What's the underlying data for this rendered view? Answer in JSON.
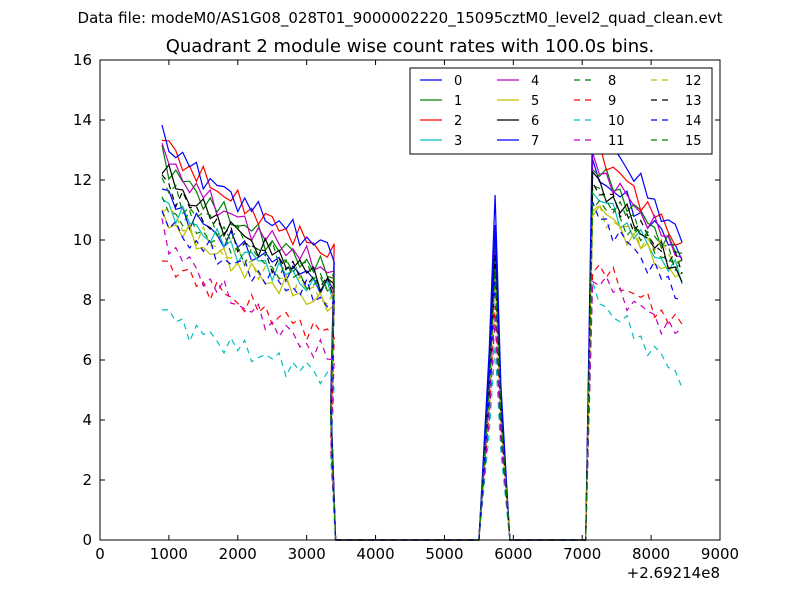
{
  "figure": {
    "suptitle": "Data file: modeM0/AS1G08_028T01_9000002220_15095cztM0_level2_quad_clean.evt"
  },
  "chart_data": {
    "type": "line",
    "title": "Quadrant 2 module wise count rates with 100.0s bins.",
    "xlabel": "",
    "ylabel": "",
    "x_offset_label": "+2.69214e8",
    "xlim": [
      0,
      9000
    ],
    "ylim": [
      0,
      16
    ],
    "xticks": [
      0,
      1000,
      2000,
      3000,
      4000,
      5000,
      6000,
      7000,
      8000,
      9000
    ],
    "yticks": [
      0,
      2,
      4,
      6,
      8,
      10,
      12,
      14,
      16
    ],
    "grid": false,
    "legend": {
      "placement": "top-right",
      "columns": 4
    },
    "segments": [
      {
        "x_start": 900,
        "x_step": 100,
        "points": 26,
        "drop_to_zero_at": 3450
      },
      {
        "peak_x": 5735,
        "flat_zero_until": 5500,
        "returns_zero_at": 5950
      },
      {
        "rise_at": 7050,
        "x_end": 8350
      }
    ],
    "series": [
      {
        "name": "0",
        "color": "#0000ff",
        "style": "solid",
        "segA_start": 11.7,
        "segA_end": 8.4,
        "peak": 11.5,
        "segC_start": 12.3,
        "segC_end": 9.6
      },
      {
        "name": "1",
        "color": "#008000",
        "style": "solid",
        "segA_start": 12.9,
        "segA_end": 8.8,
        "peak": 10.0,
        "segC_start": 12.5,
        "segC_end": 9.4
      },
      {
        "name": "2",
        "color": "#ff0000",
        "style": "solid",
        "segA_start": 13.5,
        "segA_end": 9.5,
        "peak": 9.5,
        "segC_start": 13.2,
        "segC_end": 9.8
      },
      {
        "name": "3",
        "color": "#00bfbf",
        "style": "solid",
        "segA_start": 11.5,
        "segA_end": 8.2,
        "peak": 9.0,
        "segC_start": 11.6,
        "segC_end": 8.7
      },
      {
        "name": "4",
        "color": "#bf00bf",
        "style": "solid",
        "segA_start": 13.0,
        "segA_end": 8.9,
        "peak": 9.6,
        "segC_start": 12.6,
        "segC_end": 9.5
      },
      {
        "name": "5",
        "color": "#bfbf00",
        "style": "solid",
        "segA_start": 11.0,
        "segA_end": 7.7,
        "peak": 8.8,
        "segC_start": 11.2,
        "segC_end": 8.6
      },
      {
        "name": "6",
        "color": "#000000",
        "style": "solid",
        "segA_start": 12.5,
        "segA_end": 8.5,
        "peak": 9.5,
        "segC_start": 12.1,
        "segC_end": 8.8
      },
      {
        "name": "7",
        "color": "#0000ff",
        "style": "solid",
        "segA_start": 13.6,
        "segA_end": 9.6,
        "peak": 10.5,
        "segC_start": 14.0,
        "segC_end": 10.0
      },
      {
        "name": "8",
        "color": "#008000",
        "style": "dashed",
        "segA_start": 12.0,
        "segA_end": 8.6,
        "peak": 9.3,
        "segC_start": 11.8,
        "segC_end": 9.2
      },
      {
        "name": "9",
        "color": "#ff0000",
        "style": "dashed",
        "segA_start": 9.5,
        "segA_end": 6.8,
        "peak": 7.8,
        "segC_start": 9.2,
        "segC_end": 7.1
      },
      {
        "name": "10",
        "color": "#00bfbf",
        "style": "dashed",
        "segA_start": 7.7,
        "segA_end": 5.4,
        "peak": 6.5,
        "segC_start": 8.2,
        "segC_end": 5.4
      },
      {
        "name": "11",
        "color": "#bf00bf",
        "style": "dashed",
        "segA_start": 10.4,
        "segA_end": 6.0,
        "peak": 7.4,
        "segC_start": 8.8,
        "segC_end": 6.8
      },
      {
        "name": "12",
        "color": "#bfbf00",
        "style": "dashed",
        "segA_start": 11.2,
        "segA_end": 8.0,
        "peak": 8.9,
        "segC_start": 11.0,
        "segC_end": 9.3
      },
      {
        "name": "13",
        "color": "#000000",
        "style": "dashed",
        "segA_start": 12.2,
        "segA_end": 8.3,
        "peak": 9.2,
        "segC_start": 11.9,
        "segC_end": 9.0
      },
      {
        "name": "14",
        "color": "#0000ff",
        "style": "dashed",
        "segA_start": 10.8,
        "segA_end": 7.9,
        "peak": 8.7,
        "segC_start": 11.0,
        "segC_end": 8.1
      },
      {
        "name": "15",
        "color": "#008000",
        "style": "dashed",
        "segA_start": 11.4,
        "segA_end": 8.3,
        "peak": 9.0,
        "segC_start": 11.4,
        "segC_end": 9.0
      }
    ]
  }
}
